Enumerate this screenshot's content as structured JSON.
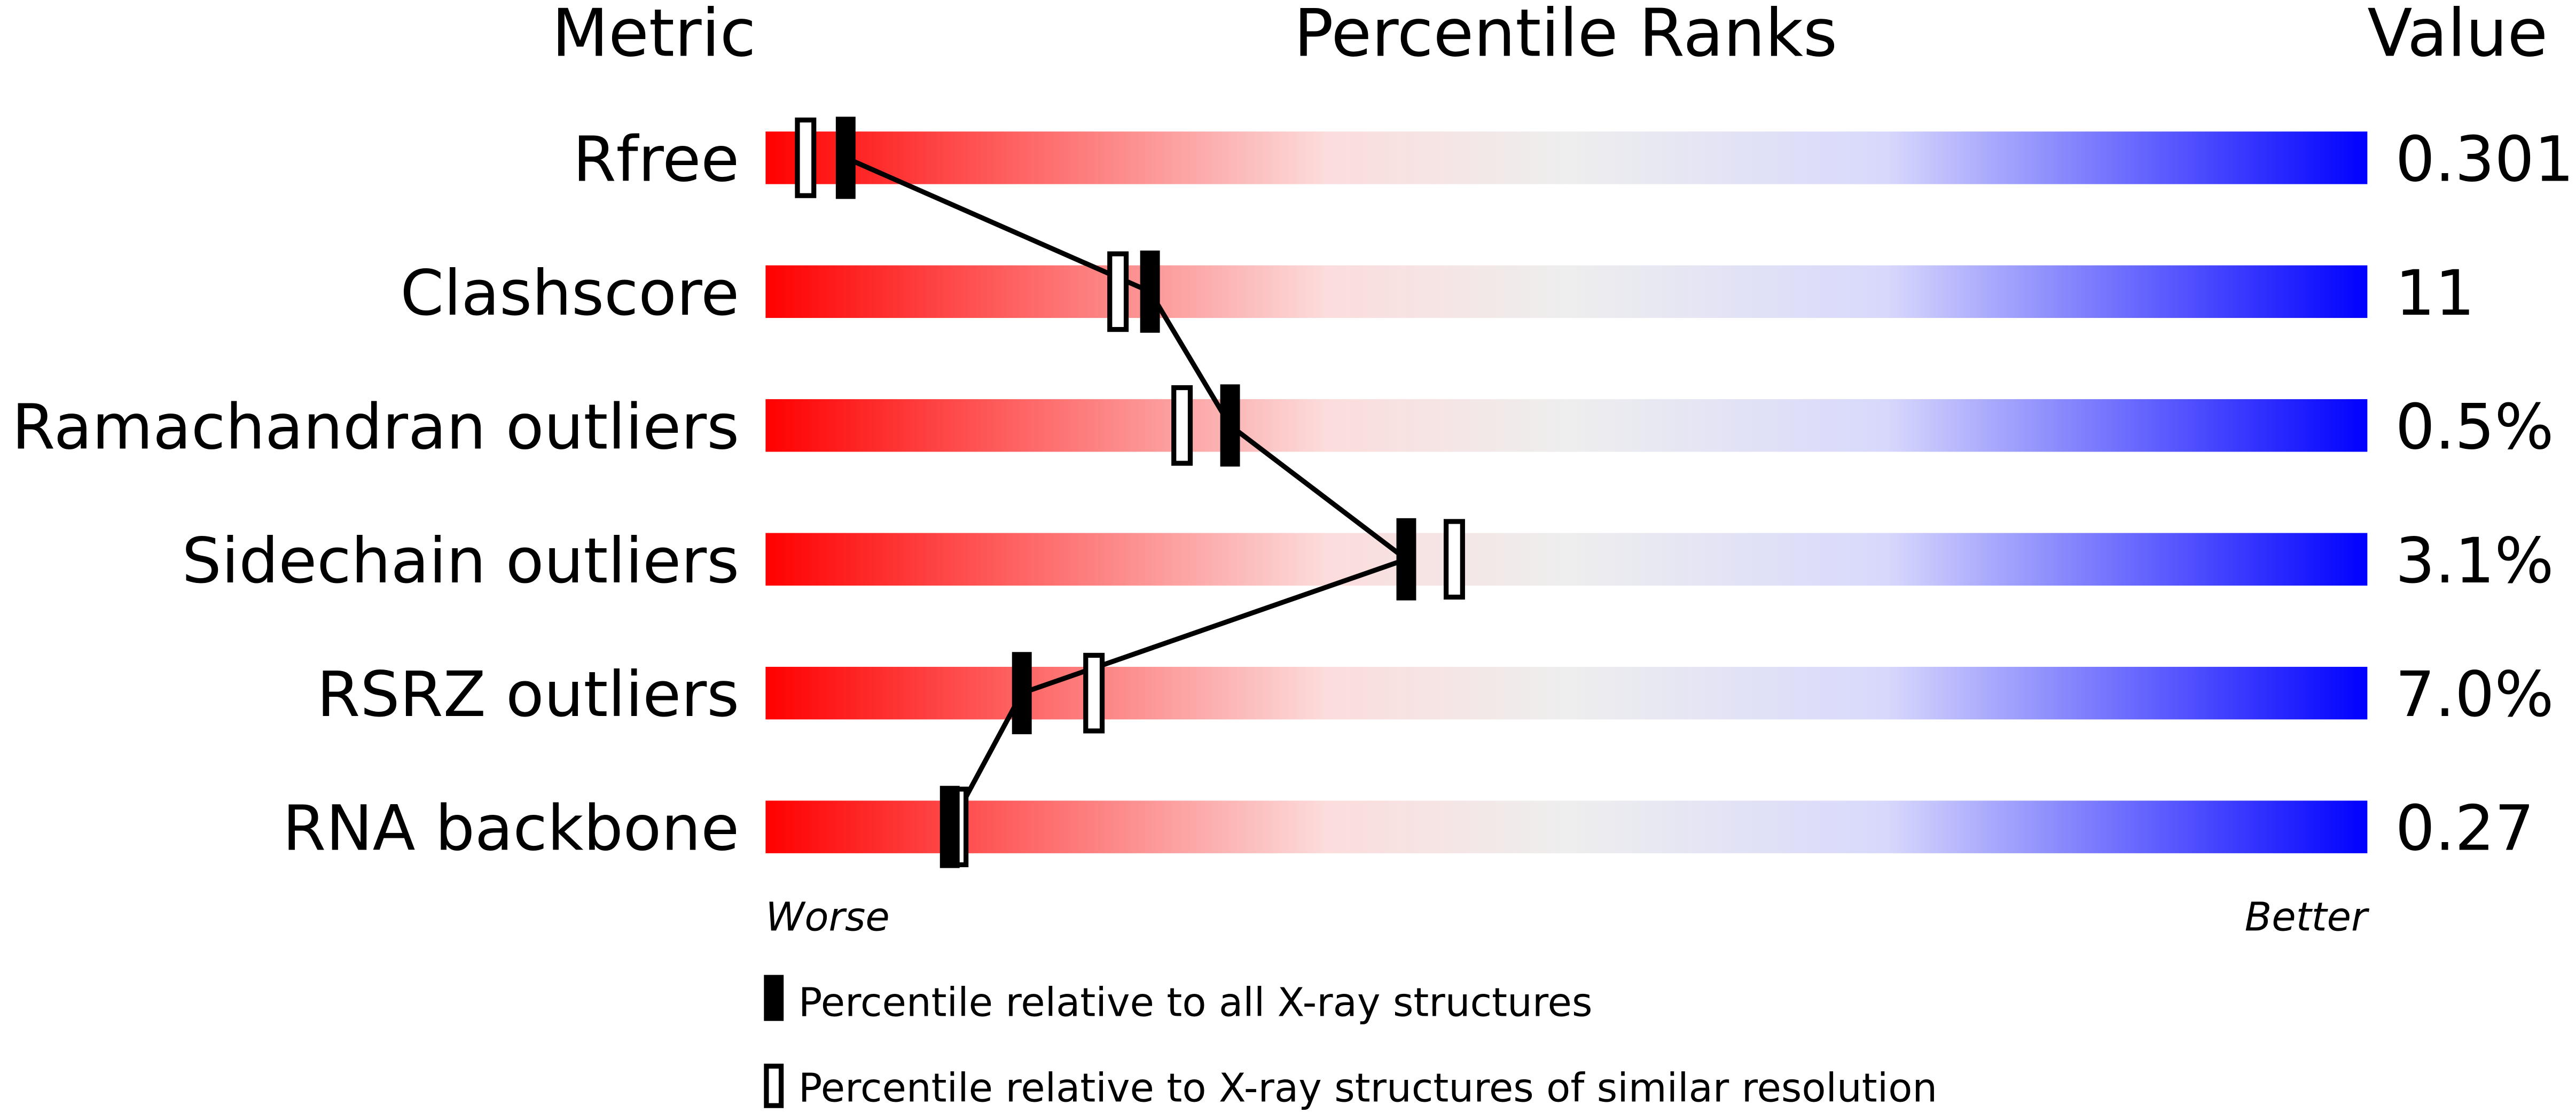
{
  "chart_data": {
    "type": "percentile-slider",
    "headers": [
      "Metric",
      "Percentile Ranks",
      "Value"
    ],
    "categories": [
      "Rfree",
      "Clashscore",
      "Ramachandran outliers",
      "Sidechain outliers",
      "RSRZ outliers",
      "RNA backbone"
    ],
    "series": [
      {
        "name": "Percentile relative to all X-ray structures",
        "color": "#000000",
        "values": [
          5,
          24,
          29,
          40,
          16,
          11.5
        ]
      },
      {
        "name": "Percentile relative to X-ray structures of similar resolution",
        "color": "#000000",
        "values": [
          2.5,
          22,
          26,
          43,
          20.5,
          12
        ]
      }
    ],
    "metric_values": [
      "0.301",
      "11",
      "0.5%",
      "3.1%",
      "7.0%",
      "0.27"
    ],
    "xlim": [
      0,
      100
    ],
    "axis_ends": [
      "Worse",
      "Better"
    ]
  }
}
